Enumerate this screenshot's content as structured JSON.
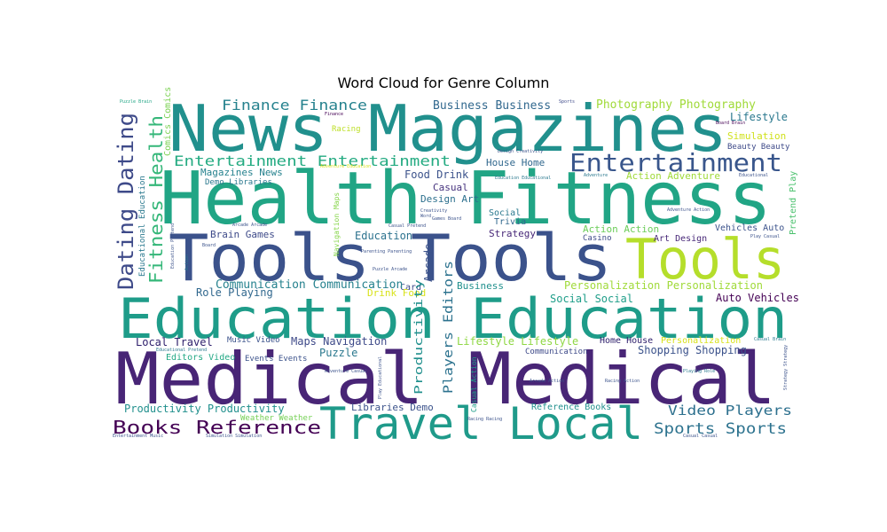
{
  "chart_data": {
    "type": "wordcloud",
    "title": "Word Cloud for Genre Column",
    "background": "#ffffff",
    "colormap": "viridis",
    "words": [
      {
        "text": "News Magazines",
        "weight": 100,
        "color": "#21908d"
      },
      {
        "text": "Health Fitness",
        "weight": 95,
        "color": "#21a585"
      },
      {
        "text": "Tools Tools",
        "weight": 90,
        "color": "#3b528b"
      },
      {
        "text": "Tools",
        "weight": 65,
        "color": "#b5de2b"
      },
      {
        "text": "Education Education",
        "weight": 85,
        "color": "#1e9c89"
      },
      {
        "text": "Medical Medical",
        "weight": 100,
        "color": "#482576"
      },
      {
        "text": "Travel Local",
        "weight": 55,
        "color": "#1f9a8a"
      },
      {
        "text": "Entertainment",
        "weight": 35,
        "color": "#39568c"
      },
      {
        "text": "Dating Dating",
        "weight": 28,
        "color": "#3e4a89"
      },
      {
        "text": "Fitness Health",
        "weight": 28,
        "color": "#35b779"
      },
      {
        "text": "Entertainment Entertainment",
        "weight": 20,
        "color": "#25ab82"
      },
      {
        "text": "Finance Finance",
        "weight": 18,
        "color": "#26828e"
      },
      {
        "text": "Business Business",
        "weight": 14,
        "color": "#31688e"
      },
      {
        "text": "Photography Photography",
        "weight": 14,
        "color": "#a0da39"
      },
      {
        "text": "Lifestyle",
        "weight": 13,
        "color": "#2a788e"
      },
      {
        "text": "Racing",
        "weight": 9,
        "color": "#bddf26"
      },
      {
        "text": "Simulation",
        "weight": 12,
        "color": "#d0e11c"
      },
      {
        "text": "Beauty Beauty",
        "weight": 10,
        "color": "#3e4a89"
      },
      {
        "text": "Pretend Play",
        "weight": 10,
        "color": "#4ac16d"
      },
      {
        "text": "Comics Comics",
        "weight": 10,
        "color": "#7ad151"
      },
      {
        "text": "Magazines News",
        "weight": 12,
        "color": "#26828e"
      },
      {
        "text": "Food Drink",
        "weight": 12,
        "color": "#3b528b"
      },
      {
        "text": "House Home",
        "weight": 11,
        "color": "#31688e"
      },
      {
        "text": "Casual",
        "weight": 12,
        "color": "#46337e"
      },
      {
        "text": "Design Art",
        "weight": 11,
        "color": "#2d708e"
      },
      {
        "text": "Action Adventure",
        "weight": 12,
        "color": "#a0da39"
      },
      {
        "text": "Social",
        "weight": 10,
        "color": "#2a788e"
      },
      {
        "text": "Trivia",
        "weight": 10,
        "color": "#31688e"
      },
      {
        "text": "Strategy",
        "weight": 12,
        "color": "#482878"
      },
      {
        "text": "Action Action",
        "weight": 12,
        "color": "#6ccd5a"
      },
      {
        "text": "Vehicles Auto",
        "weight": 10,
        "color": "#3b528b"
      },
      {
        "text": "Casino",
        "weight": 10,
        "color": "#3e4a89"
      },
      {
        "text": "Art Design",
        "weight": 10,
        "color": "#482878"
      },
      {
        "text": "Brain Games",
        "weight": 11,
        "color": "#3e4a89"
      },
      {
        "text": "Education",
        "weight": 12,
        "color": "#2c728e"
      },
      {
        "text": "Navigation Maps",
        "weight": 9,
        "color": "#86d549"
      },
      {
        "text": "Card",
        "weight": 10,
        "color": "#3e4a89"
      },
      {
        "text": "Arcade",
        "weight": 12,
        "color": "#3b528b"
      },
      {
        "text": "Players Editors",
        "weight": 14,
        "color": "#2c728e"
      },
      {
        "text": "Communication Communication",
        "weight": 13,
        "color": "#26828e"
      },
      {
        "text": "Drink Food",
        "weight": 11,
        "color": "#d8e219"
      },
      {
        "text": "Business",
        "weight": 11,
        "color": "#21908d"
      },
      {
        "text": "Personalization Personalization",
        "weight": 12,
        "color": "#a0da39"
      },
      {
        "text": "Role Playing",
        "weight": 12,
        "color": "#31688e"
      },
      {
        "text": "Social Social",
        "weight": 12,
        "color": "#1f9e89"
      },
      {
        "text": "Auto Vehicles",
        "weight": 12,
        "color": "#440154"
      },
      {
        "text": "Local Travel",
        "weight": 12,
        "color": "#2d1e6b"
      },
      {
        "text": "Music Video",
        "weight": 9,
        "color": "#3b528b"
      },
      {
        "text": "Maps Navigation",
        "weight": 12,
        "color": "#3e4a89"
      },
      {
        "text": "Productivity",
        "weight": 12,
        "color": "#21908d"
      },
      {
        "text": "Lifestyle Lifestyle",
        "weight": 12,
        "color": "#8fd744"
      },
      {
        "text": "Home House",
        "weight": 10,
        "color": "#2d1e6b"
      },
      {
        "text": "Personalization",
        "weight": 10,
        "color": "#d8e219"
      },
      {
        "text": "Communication",
        "weight": 9,
        "color": "#3e4a89"
      },
      {
        "text": "Shopping Shopping",
        "weight": 12,
        "color": "#3b528b"
      },
      {
        "text": "Puzzle",
        "weight": 12,
        "color": "#2a788e"
      },
      {
        "text": "Editors Video",
        "weight": 10,
        "color": "#22a884"
      },
      {
        "text": "Events Events",
        "weight": 9,
        "color": "#3b528b"
      },
      {
        "text": "Productivity Productivity",
        "weight": 12,
        "color": "#21908d"
      },
      {
        "text": "Libraries Demo",
        "weight": 11,
        "color": "#3b528b"
      },
      {
        "text": "Reference Books",
        "weight": 10,
        "color": "#21908d"
      },
      {
        "text": "Video Players",
        "weight": 15,
        "color": "#2d708e"
      },
      {
        "text": "Weather Weather",
        "weight": 9,
        "color": "#75d054"
      },
      {
        "text": "Books Reference",
        "weight": 20,
        "color": "#440154"
      },
      {
        "text": "Sports Sports",
        "weight": 17,
        "color": "#2c728e"
      },
      {
        "text": "Educational Education",
        "weight": 8,
        "color": "#2a788e"
      },
      {
        "text": "Demo Libraries",
        "weight": 8,
        "color": "#2a788e"
      },
      {
        "text": "Casual Action",
        "weight": 7,
        "color": "#1f9e89"
      },
      {
        "text": "Puzzle Brain",
        "weight": 5,
        "color": "#21a585"
      },
      {
        "text": "Sports",
        "weight": 5,
        "color": "#3e4a89"
      },
      {
        "text": "Finance",
        "weight": 5,
        "color": "#440154"
      },
      {
        "text": "Adventure Education",
        "weight": 5,
        "color": "#d8e219"
      },
      {
        "text": "Design Creativity",
        "weight": 5,
        "color": "#3b528b"
      },
      {
        "text": "Education Educational",
        "weight": 5,
        "color": "#2a788e"
      },
      {
        "text": "Adventure",
        "weight": 5,
        "color": "#2a788e"
      },
      {
        "text": "Educational",
        "weight": 5,
        "color": "#3b528b"
      },
      {
        "text": "Board Brain",
        "weight": 5,
        "color": "#440154"
      },
      {
        "text": "Creativity",
        "weight": 5,
        "color": "#3b528b"
      },
      {
        "text": "Word",
        "weight": 5,
        "color": "#3b528b"
      },
      {
        "text": "Games Board",
        "weight": 5,
        "color": "#3b528b"
      },
      {
        "text": "Adventure Action",
        "weight": 5,
        "color": "#3b528b"
      },
      {
        "text": "Casual Pretend",
        "weight": 5,
        "color": "#3b528b"
      },
      {
        "text": "Play Casual",
        "weight": 5,
        "color": "#3b528b"
      },
      {
        "text": "Arcade Arcade",
        "weight": 5,
        "color": "#3b528b"
      },
      {
        "text": "Education Pretend",
        "weight": 5,
        "color": "#3b528b"
      },
      {
        "text": "Board",
        "weight": 5,
        "color": "#3b528b"
      },
      {
        "text": "Action",
        "weight": 5,
        "color": "#2a788e"
      },
      {
        "text": "Parenting Parenting",
        "weight": 5,
        "color": "#3b528b"
      },
      {
        "text": "Puzzle Arcade",
        "weight": 5,
        "color": "#3b528b"
      },
      {
        "text": "Casual Brain",
        "weight": 5,
        "color": "#2a788e"
      },
      {
        "text": "Educational Pretend",
        "weight": 5,
        "color": "#2a788e"
      },
      {
        "text": "Adventure Casual",
        "weight": 5,
        "color": "#3b528b"
      },
      {
        "text": "Play Educational",
        "weight": 5,
        "color": "#3b528b"
      },
      {
        "text": "Racing Racing",
        "weight": 5,
        "color": "#3b528b"
      },
      {
        "text": "Arcade Action",
        "weight": 5,
        "color": "#3b528b"
      },
      {
        "text": "Racing Action",
        "weight": 5,
        "color": "#3b528b"
      },
      {
        "text": "Playing Role",
        "weight": 5,
        "color": "#2a788e"
      },
      {
        "text": "Strategy Strategy",
        "weight": 5,
        "color": "#3b528b"
      },
      {
        "text": "Casual Casual",
        "weight": 5,
        "color": "#3b528b"
      },
      {
        "text": "Entertainment Music",
        "weight": 5,
        "color": "#3b528b"
      },
      {
        "text": "Simulation Simulation",
        "weight": 5,
        "color": "#3b528b"
      }
    ]
  }
}
